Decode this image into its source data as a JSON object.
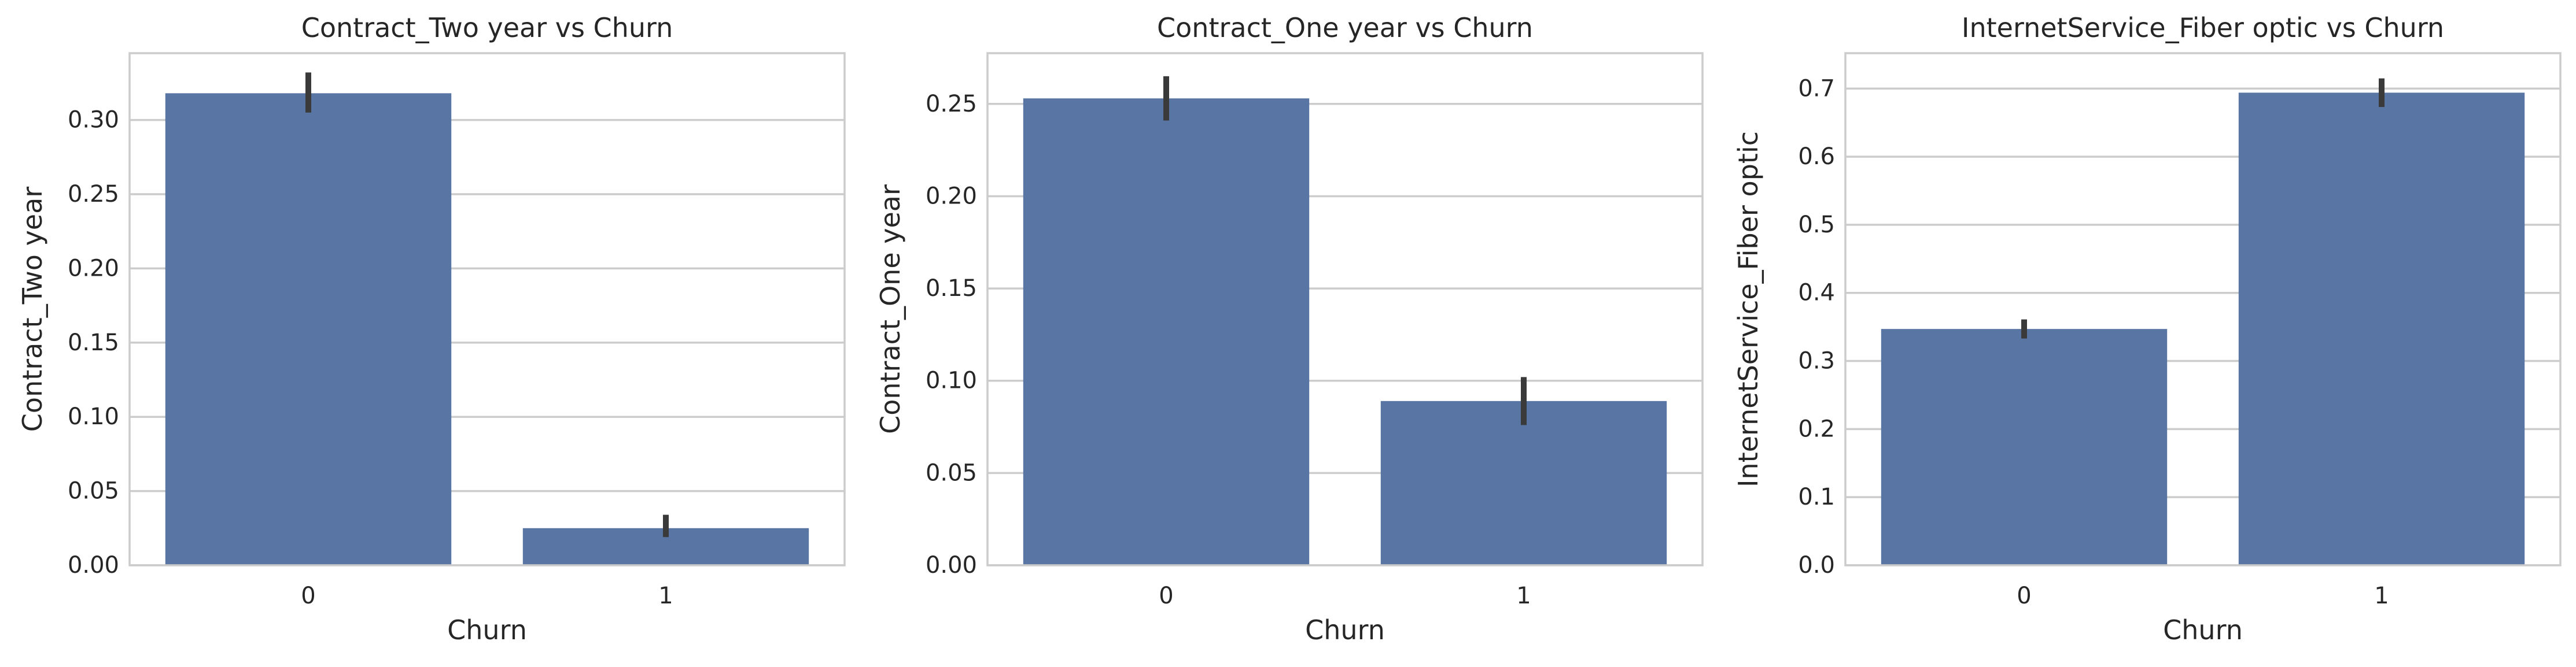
{
  "chart_data": [
    {
      "type": "bar",
      "title": "Contract_Two year vs Churn",
      "xlabel": "Churn",
      "ylabel": "Contract_Two year",
      "categories": [
        "0",
        "1"
      ],
      "values": [
        0.318,
        0.025
      ],
      "error_bars": [
        [
          0.305,
          0.332
        ],
        [
          0.019,
          0.034
        ]
      ],
      "ylim": [
        0,
        0.345
      ],
      "yticks": [
        0.0,
        0.05,
        0.1,
        0.15,
        0.2,
        0.25,
        0.3
      ],
      "ytick_labels": [
        "0.00",
        "0.05",
        "0.10",
        "0.15",
        "0.20",
        "0.25",
        "0.30"
      ],
      "grid": true,
      "bar_color": "#5975a4"
    },
    {
      "type": "bar",
      "title": "Contract_One year vs Churn",
      "xlabel": "Churn",
      "ylabel": "Contract_One year",
      "categories": [
        "0",
        "1"
      ],
      "values": [
        0.253,
        0.089
      ],
      "error_bars": [
        [
          0.241,
          0.265
        ],
        [
          0.076,
          0.102
        ]
      ],
      "ylim": [
        0,
        0.2775
      ],
      "yticks": [
        0.0,
        0.05,
        0.1,
        0.15,
        0.2,
        0.25
      ],
      "ytick_labels": [
        "0.00",
        "0.05",
        "0.10",
        "0.15",
        "0.20",
        "0.25"
      ],
      "grid": true,
      "bar_color": "#5975a4"
    },
    {
      "type": "bar",
      "title": "InternetService_Fiber optic vs Churn",
      "xlabel": "Churn",
      "ylabel": "InternetService_Fiber optic",
      "categories": [
        "0",
        "1"
      ],
      "values": [
        0.347,
        0.694
      ],
      "error_bars": [
        [
          0.333,
          0.361
        ],
        [
          0.673,
          0.715
        ]
      ],
      "ylim": [
        0,
        0.752
      ],
      "yticks": [
        0.0,
        0.1,
        0.2,
        0.3,
        0.4,
        0.5,
        0.6,
        0.7
      ],
      "ytick_labels": [
        "0.0",
        "0.1",
        "0.2",
        "0.3",
        "0.4",
        "0.5",
        "0.6",
        "0.7"
      ],
      "grid": true,
      "bar_color": "#5975a4"
    }
  ]
}
